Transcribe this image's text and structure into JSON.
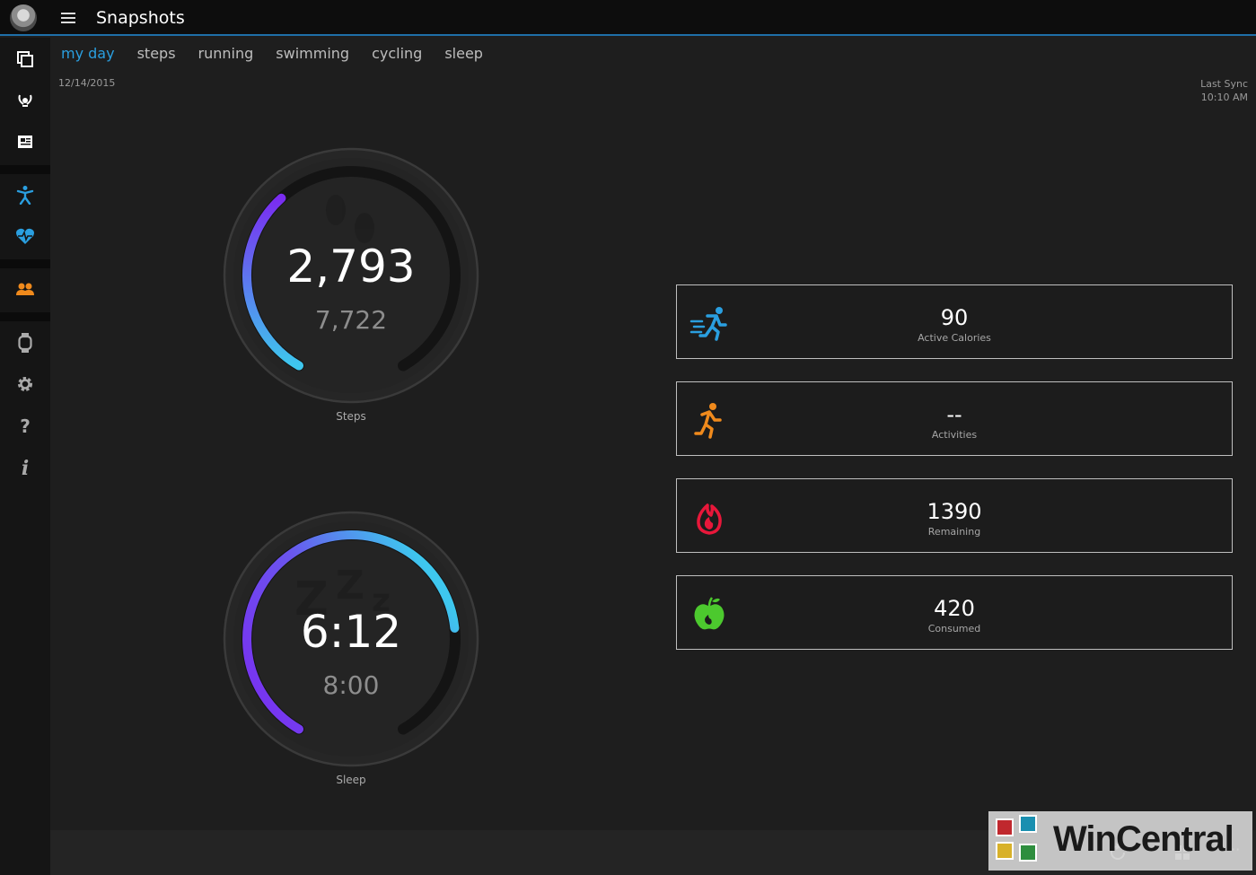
{
  "app": {
    "title": "Snapshots"
  },
  "tabs": [
    {
      "label": "my day",
      "active": true
    },
    {
      "label": "steps"
    },
    {
      "label": "running"
    },
    {
      "label": "swimming"
    },
    {
      "label": "cycling"
    },
    {
      "label": "sleep"
    }
  ],
  "date": "12/14/2015",
  "sync": {
    "label": "Last Sync",
    "time": "10:10 AM"
  },
  "steps": {
    "value": "2,793",
    "goal": "7,722",
    "label": "Steps",
    "progress": 0.36
  },
  "sleep": {
    "value": "6:12",
    "goal": "8:00",
    "label": "Sleep",
    "progress": 0.78
  },
  "cards": [
    {
      "value": "90",
      "label": "Active Calories",
      "icon": "running-fast-icon",
      "color": "#2a9fe0"
    },
    {
      "value": "--",
      "label": "Activities",
      "icon": "running-icon",
      "color": "#f08a1c"
    },
    {
      "value": "1390",
      "label": "Remaining",
      "icon": "flame-icon",
      "color": "#e8173a"
    },
    {
      "value": "420",
      "label": "Consumed",
      "icon": "apple-icon",
      "color": "#4cc92e"
    }
  ],
  "sidebar": {
    "items": [
      "snapshots-icon",
      "trophy-icon",
      "news-icon",
      "activity-icon",
      "heart-icon",
      "friends-icon",
      "watch-icon",
      "gear-icon",
      "help-icon",
      "info-icon"
    ]
  },
  "watermark": {
    "text": "WinCentral"
  },
  "colors": {
    "accent": "#2a9fe0",
    "gaugeStart": "#7a2cf0",
    "gaugeEnd": "#3ec7ee"
  }
}
